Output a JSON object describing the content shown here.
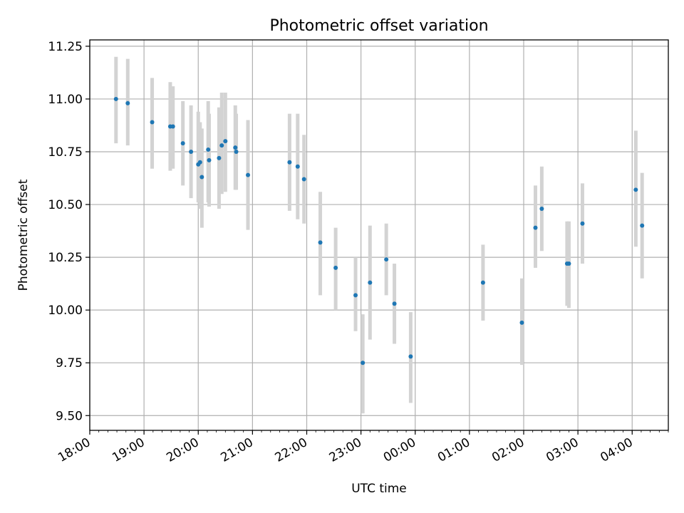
{
  "chart_data": {
    "type": "scatter",
    "title": "Photometric offset variation",
    "xlabel": "UTC time",
    "ylabel": "Photometric offset",
    "x_axis": "time",
    "xlim": [
      "18:00",
      "04:40"
    ],
    "ylim": [
      9.43,
      11.28
    ],
    "grid": true,
    "point_color": "#1f77b4",
    "errorbar_color": "#d3d3d3",
    "x_ticks": [
      "18:00",
      "19:00",
      "20:00",
      "21:00",
      "22:00",
      "23:00",
      "00:00",
      "01:00",
      "02:00",
      "03:00",
      "04:00"
    ],
    "y_ticks": [
      "9.50",
      "9.75",
      "10.00",
      "10.25",
      "10.50",
      "10.75",
      "11.00",
      "11.25"
    ],
    "points": [
      {
        "x": "18:29",
        "y": 11.0,
        "lo": 10.79,
        "hi": 11.2
      },
      {
        "x": "18:42",
        "y": 10.98,
        "lo": 10.78,
        "hi": 11.19
      },
      {
        "x": "19:09",
        "y": 10.89,
        "lo": 10.67,
        "hi": 11.1
      },
      {
        "x": "19:29",
        "y": 10.87,
        "lo": 10.66,
        "hi": 11.08
      },
      {
        "x": "19:32",
        "y": 10.87,
        "lo": 10.67,
        "hi": 11.06
      },
      {
        "x": "19:43",
        "y": 10.79,
        "lo": 10.59,
        "hi": 10.99
      },
      {
        "x": "19:52",
        "y": 10.75,
        "lo": 10.53,
        "hi": 10.97
      },
      {
        "x": "20:00",
        "y": 10.69,
        "lo": 10.51,
        "hi": 10.94
      },
      {
        "x": "20:02",
        "y": 10.7,
        "lo": 10.48,
        "hi": 10.89
      },
      {
        "x": "20:04",
        "y": 10.63,
        "lo": 10.39,
        "hi": 10.86
      },
      {
        "x": "20:11",
        "y": 10.76,
        "lo": 10.51,
        "hi": 10.99
      },
      {
        "x": "20:12",
        "y": 10.71,
        "lo": 10.49,
        "hi": 10.93
      },
      {
        "x": "20:23",
        "y": 10.72,
        "lo": 10.48,
        "hi": 10.96
      },
      {
        "x": "20:26",
        "y": 10.78,
        "lo": 10.55,
        "hi": 11.03
      },
      {
        "x": "20:30",
        "y": 10.8,
        "lo": 10.56,
        "hi": 11.03
      },
      {
        "x": "20:41",
        "y": 10.77,
        "lo": 10.57,
        "hi": 10.97
      },
      {
        "x": "20:42",
        "y": 10.75,
        "lo": 10.57,
        "hi": 10.93
      },
      {
        "x": "20:55",
        "y": 10.64,
        "lo": 10.38,
        "hi": 10.9
      },
      {
        "x": "21:41",
        "y": 10.7,
        "lo": 10.47,
        "hi": 10.93
      },
      {
        "x": "21:50",
        "y": 10.68,
        "lo": 10.43,
        "hi": 10.93
      },
      {
        "x": "21:57",
        "y": 10.62,
        "lo": 10.41,
        "hi": 10.83
      },
      {
        "x": "22:15",
        "y": 10.32,
        "lo": 10.07,
        "hi": 10.56
      },
      {
        "x": "22:32",
        "y": 10.2,
        "lo": 10.0,
        "hi": 10.39
      },
      {
        "x": "22:54",
        "y": 10.07,
        "lo": 9.9,
        "hi": 10.25
      },
      {
        "x": "23:02",
        "y": 9.75,
        "lo": 9.51,
        "hi": 9.98
      },
      {
        "x": "23:10",
        "y": 10.13,
        "lo": 9.86,
        "hi": 10.4
      },
      {
        "x": "23:28",
        "y": 10.24,
        "lo": 10.07,
        "hi": 10.41
      },
      {
        "x": "23:37",
        "y": 10.03,
        "lo": 9.84,
        "hi": 10.22
      },
      {
        "x": "23:55",
        "y": 9.78,
        "lo": 9.56,
        "hi": 9.99
      },
      {
        "x": "01:15",
        "y": 10.13,
        "lo": 9.95,
        "hi": 10.31
      },
      {
        "x": "01:58",
        "y": 9.94,
        "lo": 9.74,
        "hi": 10.15
      },
      {
        "x": "02:13",
        "y": 10.39,
        "lo": 10.2,
        "hi": 10.59
      },
      {
        "x": "02:20",
        "y": 10.48,
        "lo": 10.28,
        "hi": 10.68
      },
      {
        "x": "02:48",
        "y": 10.22,
        "lo": 10.02,
        "hi": 10.42
      },
      {
        "x": "02:50",
        "y": 10.22,
        "lo": 10.01,
        "hi": 10.42
      },
      {
        "x": "03:05",
        "y": 10.41,
        "lo": 10.22,
        "hi": 10.6
      },
      {
        "x": "04:04",
        "y": 10.57,
        "lo": 10.3,
        "hi": 10.85
      },
      {
        "x": "04:11",
        "y": 10.4,
        "lo": 10.15,
        "hi": 10.65
      }
    ]
  }
}
